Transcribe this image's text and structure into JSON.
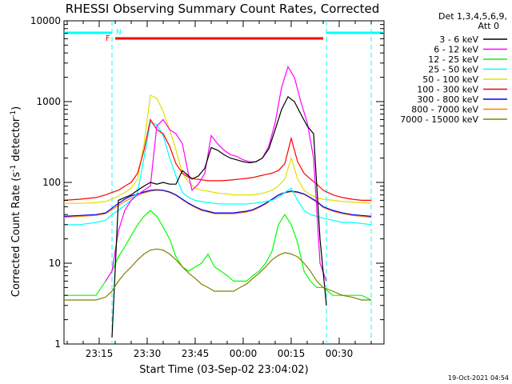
{
  "chart_data": {
    "type": "line",
    "title": "RHESSI Observing Summary Count Rates, Corrected",
    "xlabel": "Start Time (03-Sep-02 23:04:02)",
    "ylabel_main": "Corrected Count Rate (s",
    "ylabel_sup1": "-1",
    "ylabel_mid": " detector",
    "ylabel_sup2": "-1",
    "ylabel_end": ")",
    "yscale": "log",
    "ylim": [
      1,
      10000
    ],
    "xlim_minutes": [
      0,
      100
    ],
    "x_tick_labels": [
      "23:15",
      "23:30",
      "23:45",
      "00:00",
      "00:15",
      "00:30"
    ],
    "x_tick_minutes": [
      11,
      26,
      41,
      56,
      71,
      86
    ],
    "y_tick_labels": [
      "1",
      "10",
      "100",
      "1000",
      "10000"
    ],
    "y_tick_values": [
      1,
      10,
      100,
      1000,
      10000
    ],
    "legend_header": [
      "Det 1,3,4,5,6,9,",
      "Att 0"
    ],
    "series": [
      {
        "name": "3 - 6 keV",
        "color": "#000000",
        "x": [
          15,
          17,
          19,
          21,
          23,
          25,
          27,
          29,
          31,
          33,
          35,
          37,
          39,
          40,
          42,
          44,
          46,
          48,
          50,
          52,
          54,
          56,
          58,
          60,
          62,
          64,
          66,
          68,
          70,
          72,
          74,
          76,
          78,
          80,
          82
        ],
        "y": [
          1.2,
          60,
          65,
          70,
          80,
          90,
          100,
          95,
          100,
          95,
          95,
          140,
          120,
          110,
          120,
          150,
          270,
          250,
          220,
          200,
          190,
          180,
          175,
          180,
          200,
          260,
          450,
          800,
          1150,
          1000,
          700,
          500,
          400,
          20,
          3
        ]
      },
      {
        "name": "6 - 12 keV",
        "color": "#ff00ff",
        "x": [
          13,
          15,
          17,
          19,
          21,
          23,
          25,
          27,
          29,
          31,
          33,
          35,
          37,
          39,
          40,
          42,
          44,
          46,
          48,
          50,
          52,
          54,
          56,
          58,
          60,
          62,
          64,
          66,
          68,
          70,
          72,
          74,
          76,
          78,
          80,
          82
        ],
        "y": [
          6,
          8,
          25,
          45,
          60,
          70,
          80,
          90,
          500,
          600,
          450,
          400,
          300,
          120,
          80,
          95,
          130,
          380,
          300,
          250,
          220,
          210,
          190,
          180,
          180,
          200,
          280,
          550,
          1500,
          2700,
          2000,
          1000,
          550,
          200,
          10,
          6
        ]
      },
      {
        "name": "12 - 25 keV",
        "color": "#00ff00",
        "x": [
          0,
          5,
          10,
          13,
          15,
          17,
          19,
          21,
          23,
          25,
          27,
          29,
          31,
          33,
          35,
          37,
          39,
          41,
          43,
          45,
          47,
          49,
          51,
          53,
          55,
          57,
          59,
          61,
          63,
          65,
          67,
          69,
          71,
          73,
          75,
          77,
          79,
          81,
          84,
          87,
          90,
          93,
          96
        ],
        "y": [
          4,
          4,
          4,
          6,
          8,
          12,
          16,
          22,
          30,
          38,
          45,
          38,
          28,
          20,
          12,
          9,
          8,
          9,
          10,
          13,
          9,
          8,
          7,
          6,
          6,
          6,
          7,
          8,
          10,
          14,
          30,
          40,
          30,
          18,
          8,
          6,
          5,
          5,
          4,
          4,
          4,
          4,
          3.5
        ]
      },
      {
        "name": "25 - 50 keV",
        "color": "#00ffff",
        "x": [
          0,
          5,
          10,
          13,
          15,
          17,
          19,
          21,
          23,
          25,
          27,
          29,
          31,
          33,
          35,
          37,
          39,
          41,
          43,
          45,
          47,
          49,
          51,
          53,
          55,
          57,
          59,
          61,
          63,
          65,
          67,
          69,
          71,
          73,
          75,
          77,
          79,
          81,
          84,
          87,
          90,
          93,
          96
        ],
        "y": [
          30,
          30,
          32,
          34,
          40,
          45,
          52,
          60,
          75,
          200,
          550,
          520,
          380,
          200,
          120,
          75,
          65,
          60,
          58,
          56,
          55,
          54,
          54,
          54,
          54,
          54,
          55,
          56,
          58,
          60,
          65,
          75,
          85,
          60,
          45,
          40,
          38,
          36,
          34,
          32,
          32,
          31,
          30
        ]
      },
      {
        "name": "50 - 100 keV",
        "color": "#e0e000",
        "x": [
          0,
          5,
          10,
          13,
          15,
          17,
          19,
          21,
          23,
          25,
          27,
          29,
          31,
          33,
          35,
          37,
          39,
          41,
          43,
          45,
          47,
          49,
          51,
          53,
          55,
          57,
          59,
          61,
          63,
          65,
          67,
          69,
          71,
          73,
          75,
          77,
          79,
          81,
          84,
          87,
          90,
          93,
          96
        ],
        "y": [
          55,
          55,
          56,
          58,
          62,
          68,
          75,
          85,
          110,
          300,
          1200,
          1100,
          750,
          450,
          250,
          130,
          100,
          85,
          80,
          78,
          75,
          73,
          72,
          70,
          70,
          70,
          70,
          72,
          75,
          80,
          90,
          110,
          200,
          110,
          80,
          70,
          65,
          62,
          60,
          58,
          57,
          56,
          55
        ]
      },
      {
        "name": "100 - 300 keV",
        "color": "#ff0000",
        "x": [
          0,
          5,
          10,
          13,
          15,
          17,
          19,
          21,
          23,
          25,
          27,
          29,
          31,
          33,
          35,
          37,
          39,
          41,
          43,
          45,
          47,
          49,
          51,
          53,
          55,
          57,
          59,
          61,
          63,
          65,
          67,
          69,
          71,
          73,
          75,
          77,
          79,
          81,
          84,
          87,
          90,
          93,
          96
        ],
        "y": [
          60,
          62,
          65,
          70,
          75,
          80,
          90,
          100,
          130,
          250,
          600,
          450,
          400,
          280,
          170,
          130,
          115,
          110,
          108,
          105,
          105,
          105,
          106,
          108,
          110,
          112,
          115,
          120,
          125,
          130,
          140,
          170,
          350,
          180,
          130,
          110,
          95,
          80,
          70,
          65,
          62,
          60,
          60
        ]
      },
      {
        "name": "300 - 800 keV",
        "color": "#0000ff",
        "x": [
          0,
          5,
          10,
          13,
          15,
          17,
          19,
          21,
          23,
          25,
          27,
          29,
          31,
          33,
          35,
          37,
          39,
          41,
          43,
          45,
          47,
          49,
          51,
          53,
          55,
          57,
          59,
          61,
          63,
          65,
          67,
          69,
          71,
          73,
          75,
          77,
          79,
          81,
          84,
          87,
          90,
          93,
          96
        ],
        "y": [
          38,
          39,
          40,
          42,
          48,
          55,
          62,
          68,
          72,
          76,
          80,
          81,
          80,
          76,
          70,
          62,
          55,
          50,
          46,
          44,
          42,
          42,
          42,
          42,
          43,
          44,
          46,
          50,
          55,
          62,
          70,
          75,
          78,
          76,
          72,
          65,
          58,
          50,
          45,
          42,
          40,
          39,
          38
        ]
      },
      {
        "name": "800 - 7000 keV",
        "color": "#ff8000",
        "x": [
          0,
          5,
          10,
          13,
          15,
          17,
          19,
          21,
          23,
          25,
          27,
          29,
          31,
          33,
          35,
          37,
          39,
          41,
          43,
          45,
          47,
          49,
          51,
          53,
          55,
          57,
          59,
          61,
          63,
          65,
          67,
          69,
          71,
          73,
          75,
          77,
          79,
          81,
          84,
          87,
          90,
          93,
          96
        ],
        "y": [
          37,
          38,
          39,
          41,
          46,
          52,
          58,
          64,
          70,
          74,
          78,
          80,
          79,
          75,
          69,
          61,
          54,
          49,
          45,
          43,
          41,
          41,
          41,
          41,
          42,
          43,
          45,
          49,
          54,
          61,
          69,
          74,
          77,
          75,
          71,
          64,
          57,
          49,
          44,
          41,
          39,
          38,
          37
        ]
      },
      {
        "name": "7000 - 15000 keV",
        "color": "#808000",
        "x": [
          0,
          5,
          10,
          13,
          15,
          17,
          19,
          21,
          23,
          25,
          27,
          29,
          31,
          33,
          35,
          37,
          39,
          41,
          43,
          45,
          47,
          49,
          51,
          53,
          55,
          57,
          59,
          61,
          63,
          65,
          67,
          69,
          71,
          73,
          75,
          77,
          79,
          81,
          84,
          87,
          90,
          93,
          96
        ],
        "y": [
          3.5,
          3.5,
          3.5,
          3.8,
          4.5,
          6,
          7.5,
          9,
          11,
          13,
          14.5,
          15,
          14.5,
          13,
          11,
          9,
          7.5,
          6.5,
          5.5,
          5,
          4.5,
          4.5,
          4.5,
          4.5,
          5,
          5.5,
          6.5,
          7.5,
          9,
          11,
          12.5,
          13.5,
          13,
          12,
          10,
          8,
          6,
          5,
          4.5,
          4,
          3.8,
          3.5,
          3.5
        ]
      }
    ],
    "annotations": {
      "flag_F_label": "F",
      "flag_N_label": "N",
      "night_bars_minutes": [
        [
          0,
          15
        ],
        [
          82,
          100
        ]
      ],
      "flare_bar_minutes": [
        16,
        81
      ],
      "night_dashed_lines_minutes": [
        15,
        82,
        96
      ]
    },
    "timestamp": "19-Oct-2021 04:54"
  }
}
